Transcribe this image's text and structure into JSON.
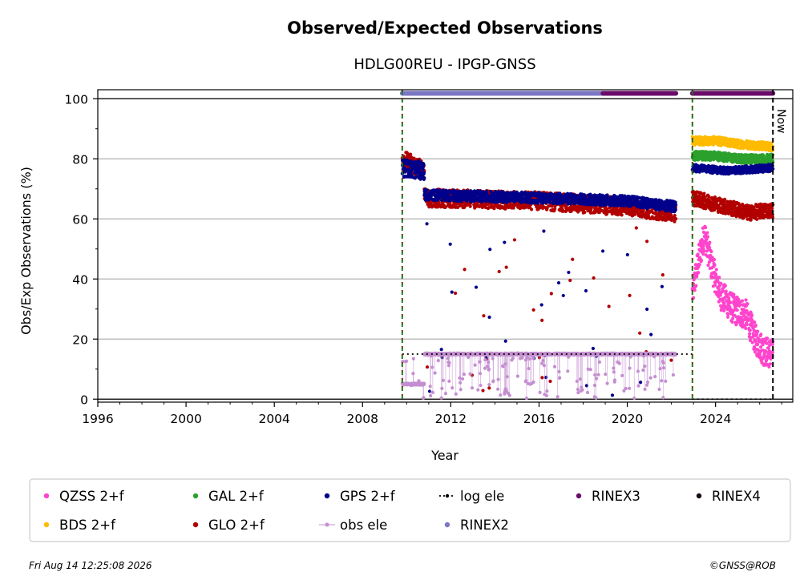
{
  "chart_data": {
    "type": "scatter",
    "title": "Observed/Expected Observations",
    "subtitle": "HDLG00REU - IPGP-GNSS",
    "xlabel": "Year",
    "ylabel": "Obs/Exp Observations (%)",
    "xlim": [
      1996,
      2027.5
    ],
    "ylim": [
      -1,
      103
    ],
    "x_ticks": [
      "1996",
      "2000",
      "2004",
      "2008",
      "2012",
      "2016",
      "2020",
      "2024"
    ],
    "y_ticks": [
      "0",
      "20",
      "40",
      "60",
      "80",
      "100"
    ],
    "grid": "horizontal",
    "vertical_markers": [
      {
        "x": 2009.8,
        "style": "green dashed"
      },
      {
        "x": 2022.95,
        "style": "green dashed"
      },
      {
        "x": 2026.6,
        "style": "black dashed",
        "label": "Now"
      }
    ],
    "rinex_bars": [
      {
        "name": "RINEX2",
        "color": "#7b77c4",
        "start": 2009.8,
        "end": 2018.9
      },
      {
        "name": "RINEX3",
        "color": "#6a0c6a",
        "start": 2018.9,
        "end": 2022.2
      },
      {
        "name": "RINEX3",
        "color": "#6a0c6a",
        "start": 2022.95,
        "end": 2026.6
      }
    ],
    "log_ele": [
      {
        "start": 2009.8,
        "end": 2022.95,
        "value": 15
      },
      {
        "start": 2022.95,
        "end": 2026.6,
        "value": 0
      }
    ],
    "series": [
      {
        "name": "QZSS 2+f",
        "color": "#ff44cc",
        "segments": [
          {
            "start": 2022.95,
            "end": 2026.6,
            "points": [
              [
                2022.95,
                35
              ],
              [
                2023.2,
                45
              ],
              [
                2023.5,
                55
              ],
              [
                2023.8,
                45
              ],
              [
                2024.2,
                35
              ],
              [
                2024.8,
                30
              ],
              [
                2025.4,
                28
              ],
              [
                2025.8,
                20
              ],
              [
                2026.2,
                16
              ],
              [
                2026.6,
                15
              ]
            ],
            "noise": 5
          }
        ]
      },
      {
        "name": "BDS 2+f",
        "color": "#ffbb00",
        "segments": [
          {
            "start": 2022.95,
            "end": 2026.6,
            "points": [
              [
                2022.95,
                86
              ],
              [
                2024,
                86
              ],
              [
                2025,
                85
              ],
              [
                2026.6,
                84
              ]
            ],
            "noise": 1.4
          }
        ]
      },
      {
        "name": "GAL 2+f",
        "color": "#2ca02c",
        "segments": [
          {
            "start": 2022.95,
            "end": 2026.6,
            "points": [
              [
                2022.95,
                81
              ],
              [
                2024,
                81
              ],
              [
                2025,
                80
              ],
              [
                2026.6,
                80
              ]
            ],
            "noise": 1.5
          }
        ]
      },
      {
        "name": "GLO 2+f",
        "color": "#b20000",
        "segments": [
          {
            "start": 2009.8,
            "end": 2010.8,
            "points": [
              [
                2009.8,
                80
              ],
              [
                2010.8,
                76
              ]
            ],
            "noise": 3
          },
          {
            "start": 2010.8,
            "end": 2022.2,
            "points": [
              [
                2010.8,
                67
              ],
              [
                2016,
                66
              ],
              [
                2020,
                64
              ],
              [
                2022.2,
                62
              ]
            ],
            "noise": 3
          },
          {
            "start": 2022.95,
            "end": 2026.6,
            "points": [
              [
                2022.95,
                67
              ],
              [
                2024.5,
                64
              ],
              [
                2025.5,
                62
              ],
              [
                2026.6,
                63
              ]
            ],
            "noise": 2.5
          }
        ]
      },
      {
        "name": "GPS 2+f",
        "color": "#00008b",
        "segments": [
          {
            "start": 2009.8,
            "end": 2010.8,
            "points": [
              [
                2009.8,
                77
              ],
              [
                2010.8,
                76
              ]
            ],
            "noise": 3
          },
          {
            "start": 2010.8,
            "end": 2022.2,
            "points": [
              [
                2010.8,
                68
              ],
              [
                2016,
                67
              ],
              [
                2020,
                66
              ],
              [
                2022.2,
                64
              ]
            ],
            "noise": 1.8
          },
          {
            "start": 2022.95,
            "end": 2026.6,
            "points": [
              [
                2022.95,
                77
              ],
              [
                2024.5,
                76
              ],
              [
                2026.6,
                77
              ]
            ],
            "noise": 1.2
          }
        ]
      },
      {
        "name": "obs ele",
        "color": "#c48fd0",
        "segments": [
          {
            "start": 2009.8,
            "end": 2010.8,
            "points": [
              [
                2009.8,
                5
              ],
              [
                2010.8,
                5
              ]
            ],
            "noise": 0.3
          },
          {
            "start": 2010.8,
            "end": 2022.2,
            "points": [
              [
                2010.8,
                15
              ],
              [
                2022.2,
                15
              ]
            ],
            "noise": 0.3
          }
        ]
      }
    ],
    "legend": {
      "placement": "bottom",
      "entries": [
        {
          "label": "QZSS 2+f",
          "color": "#ff44cc",
          "kind": "dot"
        },
        {
          "label": "GAL 2+f",
          "color": "#2ca02c",
          "kind": "dot"
        },
        {
          "label": "GPS 2+f",
          "color": "#00008b",
          "kind": "dot"
        },
        {
          "label": "log ele",
          "color": "#000000",
          "kind": "dotted-line"
        },
        {
          "label": "RINEX3",
          "color": "#6a0c6a",
          "kind": "dot"
        },
        {
          "label": "RINEX4",
          "color": "#1a0a1a",
          "kind": "dot"
        },
        {
          "label": "BDS 2+f",
          "color": "#ffbb00",
          "kind": "dot"
        },
        {
          "label": "GLO 2+f",
          "color": "#b20000",
          "kind": "dot"
        },
        {
          "label": "obs ele",
          "color": "#c48fd0",
          "kind": "line-dot"
        },
        {
          "label": "RINEX2",
          "color": "#7b77c4",
          "kind": "dot"
        }
      ]
    },
    "footer_left": "Fri Aug 14 12:25:08 2026",
    "footer_right": "©GNSS@ROB"
  }
}
